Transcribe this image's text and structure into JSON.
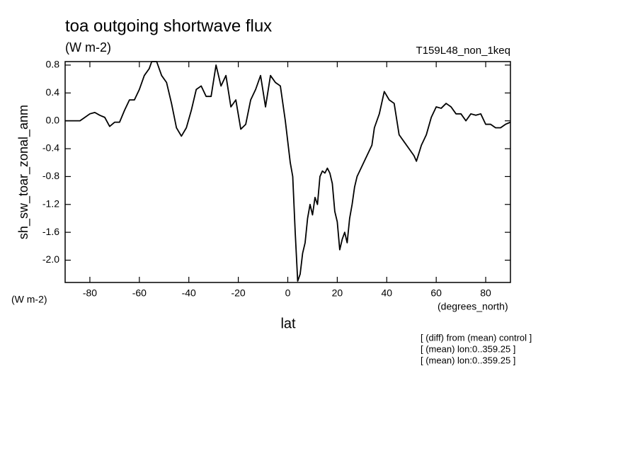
{
  "chart_data": {
    "type": "line",
    "title": "toa outgoing shortwave flux",
    "subtitle": "(W m-2)",
    "run_label": "T159L48_non_1keq",
    "y_label": "sh_sw_toar_zonal_anm",
    "y_units": "(W m-2)",
    "x_units": "(degrees_north)",
    "x_label": "lat",
    "notes": [
      "[ (diff) from (mean) control ]",
      "[ (mean) lon:0..359.25 ]",
      "[ (mean) lon:0..359.25 ]"
    ],
    "color": "#000000",
    "xlim": [
      -90,
      90
    ],
    "ylim": [
      -2.32,
      0.85
    ],
    "xticks": [
      -80,
      -60,
      -40,
      -20,
      0,
      20,
      40,
      60,
      80
    ],
    "yticks": [
      {
        "value": -2,
        "label": "-2.0"
      },
      -1.6,
      -1.2,
      -0.8,
      -0.4,
      {
        "value": 0,
        "label": "0.0"
      },
      0.4,
      0.8
    ],
    "x": [
      -90,
      -86,
      -84,
      -82,
      -80,
      -78,
      -76,
      -74,
      -72,
      -70,
      -68,
      -66,
      -64,
      -62,
      -60,
      -58,
      -56,
      -55,
      -53,
      -51,
      -49,
      -47,
      -45,
      -43,
      -41,
      -39,
      -37,
      -35,
      -33,
      -31,
      -29,
      -27,
      -25,
      -23,
      -21,
      -19,
      -17,
      -15,
      -13,
      -11,
      -9,
      -7,
      -5,
      -3,
      -1,
      1,
      2,
      3,
      4,
      5,
      6,
      7,
      8,
      9,
      10,
      11,
      12,
      13,
      14,
      15,
      16,
      17,
      18,
      19,
      20,
      21,
      22,
      23,
      24,
      25,
      26,
      27,
      28,
      30,
      32,
      34,
      35,
      37,
      39,
      41,
      43,
      45,
      47,
      49,
      51,
      52,
      54,
      56,
      58,
      60,
      62,
      64,
      66,
      68,
      70,
      72,
      74,
      76,
      78,
      80,
      82,
      84,
      86,
      88,
      90
    ],
    "values": [
      0.0,
      0.0,
      0.0,
      0.05,
      0.1,
      0.12,
      0.08,
      0.05,
      -0.08,
      -0.02,
      -0.02,
      0.15,
      0.3,
      0.3,
      0.45,
      0.65,
      0.75,
      0.85,
      0.85,
      0.65,
      0.55,
      0.25,
      -0.1,
      -0.22,
      -0.1,
      0.15,
      0.45,
      0.5,
      0.35,
      0.35,
      0.8,
      0.5,
      0.65,
      0.2,
      0.3,
      -0.12,
      -0.05,
      0.3,
      0.45,
      0.65,
      0.2,
      0.65,
      0.55,
      0.5,
      0.0,
      -0.6,
      -0.8,
      -1.6,
      -2.3,
      -2.2,
      -1.9,
      -1.75,
      -1.4,
      -1.2,
      -1.35,
      -1.1,
      -1.2,
      -0.8,
      -0.72,
      -0.75,
      -0.68,
      -0.75,
      -0.9,
      -1.3,
      -1.45,
      -1.85,
      -1.7,
      -1.6,
      -1.75,
      -1.4,
      -1.2,
      -0.95,
      -0.8,
      -0.65,
      -0.5,
      -0.35,
      -0.1,
      0.1,
      0.42,
      0.3,
      0.25,
      -0.2,
      -0.3,
      -0.4,
      -0.5,
      -0.58,
      -0.35,
      -0.2,
      0.05,
      0.2,
      0.18,
      0.25,
      0.2,
      0.1,
      0.1,
      0.0,
      0.1,
      0.08,
      0.1,
      -0.05,
      -0.05,
      -0.1,
      -0.1,
      -0.05,
      -0.02
    ]
  }
}
